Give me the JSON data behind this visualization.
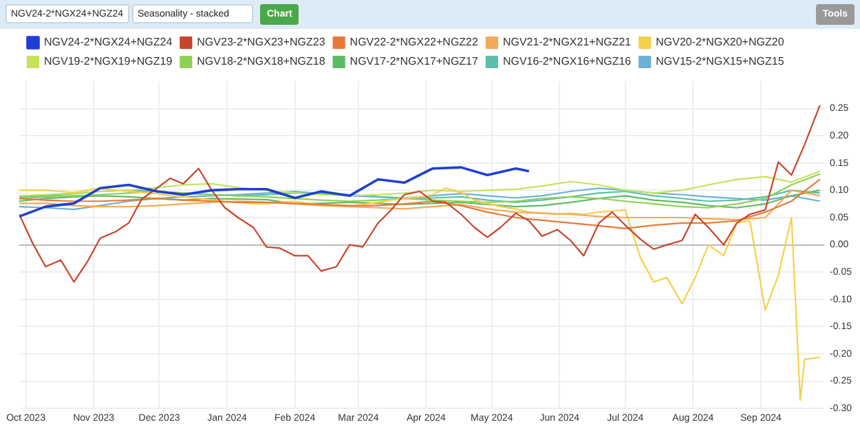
{
  "chart_data": {
    "type": "line",
    "annotations": [
      "NGV24-2*NGX24+NGZ24",
      "Seasonality - stacked",
      "Chart",
      "Tools"
    ],
    "x": [
      "2023-09-28",
      "2023-10-10",
      "2023-10-23",
      "2023-11-04",
      "2023-11-17",
      "2023-11-30",
      "2023-12-12",
      "2023-12-25",
      "2024-01-06",
      "2024-01-19",
      "2024-02-01",
      "2024-02-13",
      "2024-02-26",
      "2024-03-10",
      "2024-03-22",
      "2024-04-04",
      "2024-04-17",
      "2024-04-29",
      "2024-05-12",
      "2024-05-24",
      "2024-06-06",
      "2024-06-19",
      "2024-07-01",
      "2024-07-14",
      "2024-07-27",
      "2024-08-08",
      "2024-08-21",
      "2024-09-03",
      "2024-09-15",
      "2024-09-28"
    ],
    "series": [
      {
        "name": "NGV24-2*NGX24+NGZ24",
        "color": "#1f3fd1",
        "x": [
          "2023-09-28",
          "2023-10-10",
          "2023-10-23",
          "2023-11-04",
          "2023-11-17",
          "2023-11-30",
          "2023-12-12",
          "2023-12-25",
          "2024-01-06",
          "2024-01-19",
          "2024-02-01",
          "2024-02-13",
          "2024-02-26",
          "2024-03-10",
          "2024-03-22",
          "2024-04-04",
          "2024-04-17",
          "2024-04-29",
          "2024-05-12",
          "2024-05-18"
        ],
        "values": [
          0.052,
          0.07,
          0.076,
          0.104,
          0.11,
          0.098,
          0.092,
          0.1,
          0.102,
          0.102,
          0.086,
          0.098,
          0.09,
          0.12,
          0.114,
          0.14,
          0.142,
          0.128,
          0.14,
          0.135
        ]
      },
      {
        "name": "NGV23-2*NGX23+NGZ23",
        "color": "#c8442c",
        "x": [
          "2023-09-28",
          "2023-10-04",
          "2023-10-10",
          "2023-10-17",
          "2023-10-23",
          "2023-10-29",
          "2023-11-04",
          "2023-11-11",
          "2023-11-17",
          "2023-11-23",
          "2023-11-30",
          "2023-12-06",
          "2023-12-12",
          "2023-12-19",
          "2023-12-25",
          "2023-12-31",
          "2024-01-06",
          "2024-01-13",
          "2024-01-19",
          "2024-01-25",
          "2024-02-01",
          "2024-02-07",
          "2024-02-13",
          "2024-02-20",
          "2024-02-26",
          "2024-03-03",
          "2024-03-10",
          "2024-03-16",
          "2024-03-22",
          "2024-03-29",
          "2024-04-04",
          "2024-04-10",
          "2024-04-17",
          "2024-04-23",
          "2024-04-29",
          "2024-05-05",
          "2024-05-12",
          "2024-05-18",
          "2024-05-24",
          "2024-05-31",
          "2024-06-06",
          "2024-06-12",
          "2024-06-19",
          "2024-06-25",
          "2024-07-01",
          "2024-07-08",
          "2024-07-14",
          "2024-07-20",
          "2024-07-27",
          "2024-08-02",
          "2024-08-08",
          "2024-08-15",
          "2024-08-21",
          "2024-08-27",
          "2024-09-03",
          "2024-09-09",
          "2024-09-15",
          "2024-09-21",
          "2024-09-28"
        ],
        "values": [
          0.056,
          0.004,
          -0.04,
          -0.028,
          -0.068,
          -0.032,
          0.012,
          0.024,
          0.04,
          0.084,
          0.104,
          0.122,
          0.112,
          0.14,
          0.1,
          0.068,
          0.05,
          0.032,
          -0.004,
          -0.006,
          -0.02,
          -0.02,
          -0.048,
          -0.04,
          0.0,
          -0.004,
          0.04,
          0.064,
          0.092,
          0.098,
          0.08,
          0.078,
          0.056,
          0.032,
          0.014,
          0.032,
          0.058,
          0.044,
          0.016,
          0.028,
          0.008,
          -0.02,
          0.04,
          0.06,
          0.036,
          0.01,
          -0.008,
          0.0,
          0.008,
          0.056,
          0.032,
          0.0,
          0.04,
          0.056,
          0.064,
          0.152,
          0.128,
          0.184,
          0.256
        ]
      },
      {
        "name": "NGV22-2*NGX22+NGZ22",
        "color": "#e8793a",
        "values": [
          0.085,
          0.082,
          0.08,
          0.08,
          0.082,
          0.085,
          0.082,
          0.08,
          0.078,
          0.078,
          0.076,
          0.074,
          0.072,
          0.072,
          0.075,
          0.08,
          0.072,
          0.06,
          0.05,
          0.045,
          0.04,
          0.035,
          0.03,
          0.036,
          0.04,
          0.04,
          0.044,
          0.06,
          0.08,
          0.12
        ]
      },
      {
        "name": "NGV21-2*NGX21+NGZ21",
        "color": "#f2aa55",
        "values": [
          0.076,
          0.076,
          0.072,
          0.07,
          0.07,
          0.072,
          0.075,
          0.078,
          0.08,
          0.078,
          0.075,
          0.072,
          0.07,
          0.068,
          0.066,
          0.07,
          0.074,
          0.066,
          0.06,
          0.058,
          0.056,
          0.052,
          0.05,
          0.05,
          0.05,
          0.048,
          0.046,
          0.05,
          0.1,
          0.09
        ]
      },
      {
        "name": "NGV20-2*NGX20+NGZ20",
        "color": "#f5d04a",
        "x": [
          "2023-09-28",
          "2023-10-04",
          "2023-10-10",
          "2023-10-17",
          "2023-10-23",
          "2023-10-29",
          "2023-11-04",
          "2023-11-11",
          "2023-11-17",
          "2023-11-23",
          "2023-11-30",
          "2023-12-06",
          "2023-12-12",
          "2023-12-19",
          "2023-12-25",
          "2023-12-31",
          "2024-01-06",
          "2024-01-13",
          "2024-01-19",
          "2024-01-25",
          "2024-02-01",
          "2024-02-07",
          "2024-02-13",
          "2024-02-20",
          "2024-02-26",
          "2024-03-03",
          "2024-03-10",
          "2024-03-16",
          "2024-03-22",
          "2024-03-29",
          "2024-04-04",
          "2024-04-10",
          "2024-04-17",
          "2024-04-23",
          "2024-04-29",
          "2024-05-05",
          "2024-05-12",
          "2024-05-18",
          "2024-05-24",
          "2024-05-31",
          "2024-06-06",
          "2024-06-12",
          "2024-06-19",
          "2024-06-25",
          "2024-07-01",
          "2024-07-08",
          "2024-07-14",
          "2024-07-20",
          "2024-07-27",
          "2024-08-02",
          "2024-08-08",
          "2024-08-15",
          "2024-08-21",
          "2024-08-27",
          "2024-09-03",
          "2024-09-09",
          "2024-09-15",
          "2024-09-19",
          "2024-09-21",
          "2024-09-28"
        ],
        "values": [
          0.1,
          0.1,
          0.1,
          0.098,
          0.096,
          0.1,
          0.104,
          0.1,
          0.098,
          0.096,
          0.094,
          0.09,
          0.088,
          0.085,
          0.082,
          0.08,
          0.078,
          0.075,
          0.075,
          0.078,
          0.08,
          0.076,
          0.074,
          0.072,
          0.07,
          0.074,
          0.078,
          0.082,
          0.085,
          0.088,
          0.092,
          0.104,
          0.096,
          0.082,
          0.076,
          0.07,
          0.066,
          0.06,
          0.058,
          0.056,
          0.058,
          0.056,
          0.06,
          0.062,
          0.064,
          -0.024,
          -0.068,
          -0.06,
          -0.108,
          -0.06,
          0.0,
          -0.02,
          0.04,
          0.044,
          -0.12,
          -0.056,
          0.05,
          -0.285,
          -0.21,
          -0.206
        ]
      },
      {
        "name": "NGV19-2*NGX19+NGZ19",
        "color": "#c6e25c",
        "values": [
          0.09,
          0.092,
          0.095,
          0.098,
          0.1,
          0.105,
          0.11,
          0.112,
          0.105,
          0.1,
          0.095,
          0.092,
          0.09,
          0.092,
          0.095,
          0.1,
          0.098,
          0.1,
          0.102,
          0.108,
          0.116,
          0.11,
          0.1,
          0.095,
          0.1,
          0.11,
          0.12,
          0.125,
          0.115,
          0.135
        ]
      },
      {
        "name": "NGV18-2*NGX18+NGZ18",
        "color": "#8fd155",
        "values": [
          0.085,
          0.088,
          0.09,
          0.092,
          0.095,
          0.098,
          0.095,
          0.092,
          0.09,
          0.088,
          0.085,
          0.082,
          0.08,
          0.082,
          0.085,
          0.082,
          0.08,
          0.078,
          0.08,
          0.085,
          0.088,
          0.085,
          0.08,
          0.075,
          0.07,
          0.068,
          0.075,
          0.085,
          0.11,
          0.13
        ]
      },
      {
        "name": "NGV17-2*NGX17+NGZ17",
        "color": "#5dbb63",
        "values": [
          0.08,
          0.085,
          0.088,
          0.09,
          0.088,
          0.085,
          0.082,
          0.085,
          0.084,
          0.083,
          0.075,
          0.076,
          0.078,
          0.076,
          0.074,
          0.076,
          0.078,
          0.074,
          0.07,
          0.072,
          0.078,
          0.085,
          0.09,
          0.082,
          0.078,
          0.072,
          0.068,
          0.075,
          0.09,
          0.1
        ]
      },
      {
        "name": "NGV16-2*NGX16+NGZ16",
        "color": "#5bbfa8",
        "values": [
          0.088,
          0.09,
          0.094,
          0.098,
          0.1,
          0.098,
          0.095,
          0.092,
          0.09,
          0.092,
          0.095,
          0.094,
          0.092,
          0.088,
          0.085,
          0.086,
          0.088,
          0.082,
          0.078,
          0.082,
          0.088,
          0.095,
          0.098,
          0.09,
          0.085,
          0.08,
          0.082,
          0.088,
          0.1,
          0.095
        ]
      },
      {
        "name": "NGV15-2*NGX15+NGZ15",
        "color": "#6ab0d8",
        "values": [
          0.07,
          0.068,
          0.065,
          0.072,
          0.08,
          0.085,
          0.088,
          0.09,
          0.092,
          0.095,
          0.098,
          0.094,
          0.09,
          0.088,
          0.086,
          0.09,
          0.094,
          0.09,
          0.086,
          0.09,
          0.098,
          0.104,
          0.1,
          0.095,
          0.092,
          0.088,
          0.085,
          0.082,
          0.09,
          0.08
        ]
      }
    ],
    "xlim": [
      "2023-09-28",
      "2024-09-30"
    ],
    "xticks": [
      {
        "value": "2023-10-01",
        "label": "Oct 2023"
      },
      {
        "value": "2023-11-01",
        "label": "Nov 2023"
      },
      {
        "value": "2023-12-01",
        "label": "Dec 2023"
      },
      {
        "value": "2024-01-01",
        "label": "Jan 2024"
      },
      {
        "value": "2024-02-01",
        "label": "Feb 2024"
      },
      {
        "value": "2024-03-01",
        "label": "Mar 2024"
      },
      {
        "value": "2024-04-01",
        "label": "Apr 2024"
      },
      {
        "value": "2024-05-01",
        "label": "May 2024"
      },
      {
        "value": "2024-06-01",
        "label": "Jun 2024"
      },
      {
        "value": "2024-07-01",
        "label": "Jul 2024"
      },
      {
        "value": "2024-08-01",
        "label": "Aug 2024"
      },
      {
        "value": "2024-09-01",
        "label": "Sep 2024"
      }
    ],
    "ylim": [
      -0.3,
      0.3
    ],
    "yticks": [
      {
        "value": -0.3,
        "label": "-0.30"
      },
      {
        "value": -0.25,
        "label": "-0.25"
      },
      {
        "value": -0.2,
        "label": "-0.20"
      },
      {
        "value": -0.15,
        "label": "-0.15"
      },
      {
        "value": -0.1,
        "label": "-0.10"
      },
      {
        "value": -0.05,
        "label": "-0.05"
      },
      {
        "value": 0,
        "label": "0.00"
      },
      {
        "value": 0.05,
        "label": "0.05"
      },
      {
        "value": 0.1,
        "label": "0.10"
      },
      {
        "value": 0.15,
        "label": "0.15"
      },
      {
        "value": 0.2,
        "label": "0.20"
      },
      {
        "value": 0.25,
        "label": "0.25"
      }
    ],
    "grid": true,
    "legend": "top",
    "marker": "none",
    "line_style": "solid"
  }
}
